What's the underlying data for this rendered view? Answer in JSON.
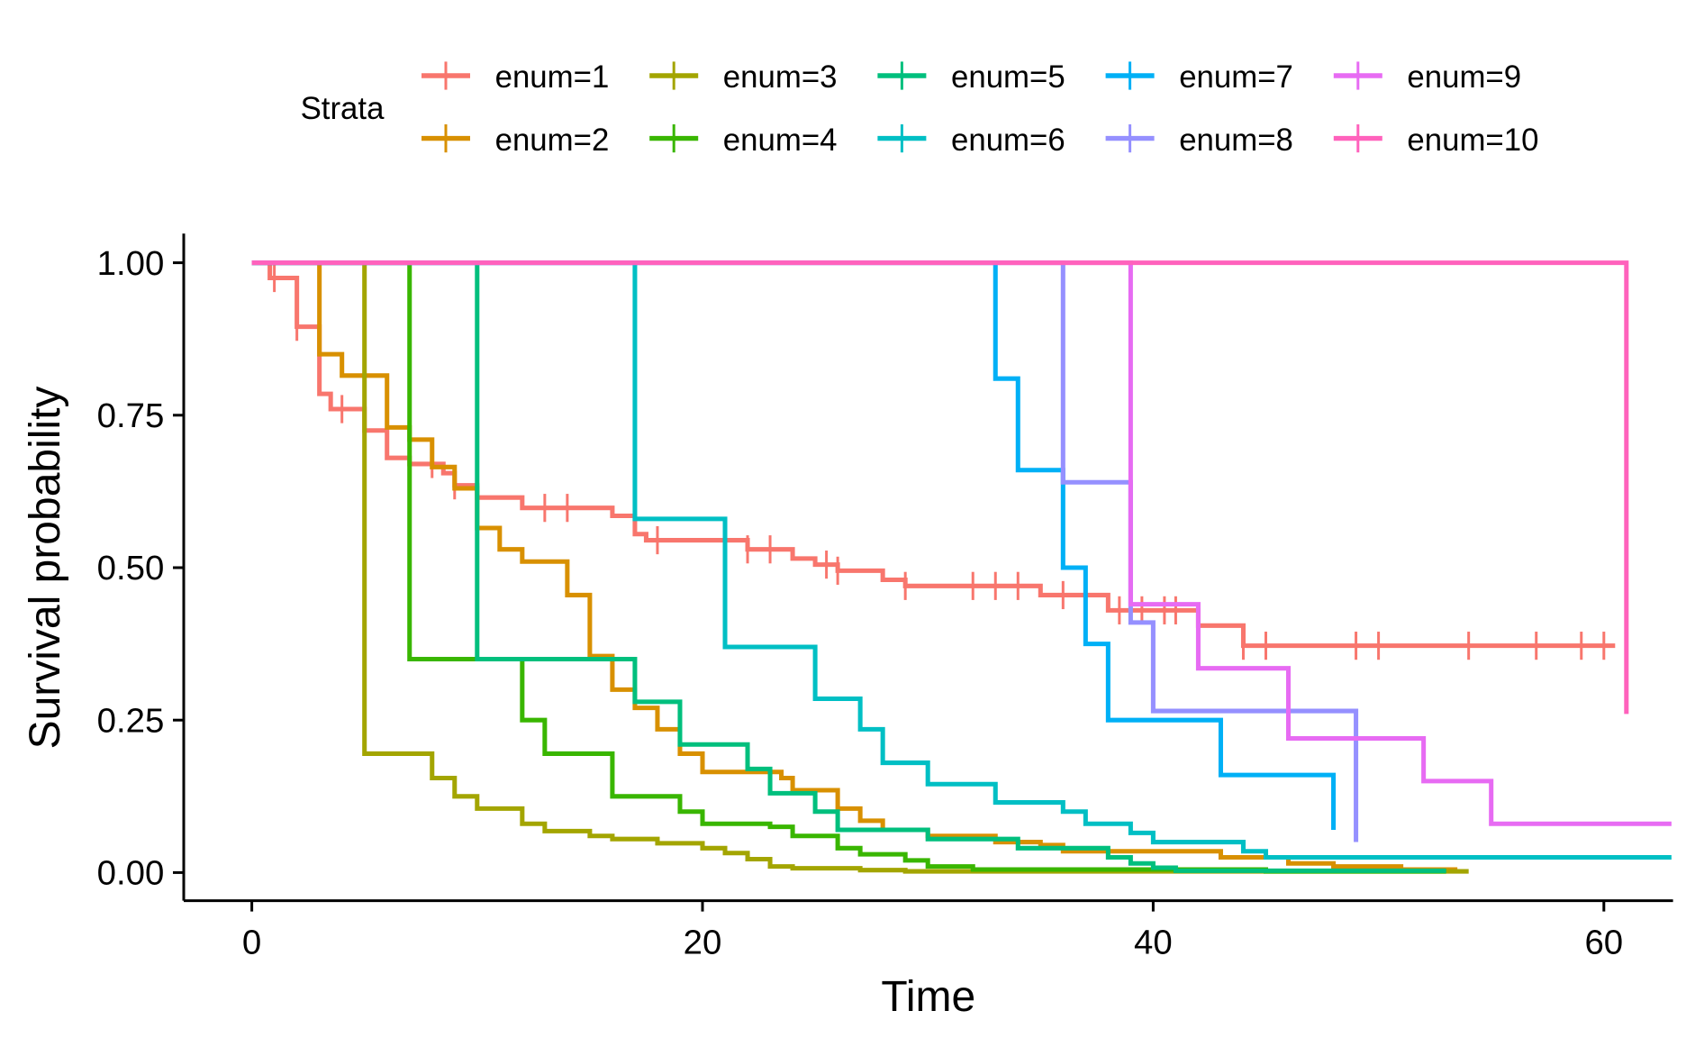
{
  "chart_data": {
    "type": "line",
    "subtype": "kaplan-meier step",
    "xlabel": "Time",
    "ylabel": "Survival probability",
    "xlim": [
      -1.5,
      63
    ],
    "ylim": [
      -0.045,
      1.05
    ],
    "xticks": [
      0,
      20,
      40,
      60
    ],
    "xtick_labels": [
      "0",
      "20",
      "40",
      "60"
    ],
    "yticks": [
      0,
      0.25,
      0.5,
      0.75,
      1
    ],
    "ytick_labels": [
      "0.00",
      "0.25",
      "0.50",
      "0.75",
      "1.00"
    ],
    "grid": false,
    "legend": {
      "title": "Strata",
      "placement": "top"
    },
    "series": [
      {
        "name": "enum=1",
        "color": "#F8766D",
        "steps": [
          [
            0,
            1
          ],
          [
            0.8,
            0.975
          ],
          [
            2,
            0.895
          ],
          [
            3,
            0.785
          ],
          [
            3.5,
            0.76
          ],
          [
            5,
            0.725
          ],
          [
            6,
            0.68
          ],
          [
            7,
            0.67
          ],
          [
            8.5,
            0.655
          ],
          [
            9,
            0.635
          ],
          [
            10,
            0.615
          ],
          [
            12,
            0.598
          ],
          [
            16,
            0.585
          ],
          [
            17,
            0.555
          ],
          [
            17.5,
            0.545
          ],
          [
            22,
            0.53
          ],
          [
            24,
            0.515
          ],
          [
            25,
            0.505
          ],
          [
            26,
            0.495
          ],
          [
            28,
            0.48
          ],
          [
            29,
            0.47
          ],
          [
            35,
            0.455
          ],
          [
            38,
            0.43
          ],
          [
            42,
            0.405
          ],
          [
            44,
            0.372
          ]
        ],
        "end": 60.5,
        "censor": [
          1,
          2,
          4,
          8,
          9,
          10,
          13,
          14,
          18,
          22,
          23,
          25.5,
          26,
          29,
          32,
          33,
          34,
          36,
          37,
          38.5,
          39.5,
          40.5,
          41,
          44,
          45,
          49,
          50,
          54,
          57,
          59,
          60
        ]
      },
      {
        "name": "enum=2",
        "color": "#D89000",
        "steps": [
          [
            0,
            1
          ],
          [
            3,
            0.85
          ],
          [
            4,
            0.815
          ],
          [
            6,
            0.73
          ],
          [
            7,
            0.71
          ],
          [
            8,
            0.665
          ],
          [
            9,
            0.63
          ],
          [
            10,
            0.565
          ],
          [
            11,
            0.53
          ],
          [
            12,
            0.51
          ],
          [
            14,
            0.455
          ],
          [
            15,
            0.355
          ],
          [
            16,
            0.3
          ],
          [
            17,
            0.27
          ],
          [
            18,
            0.235
          ],
          [
            19,
            0.195
          ],
          [
            20,
            0.165
          ],
          [
            23.5,
            0.155
          ],
          [
            24,
            0.135
          ],
          [
            26,
            0.105
          ],
          [
            27,
            0.085
          ],
          [
            28,
            0.07
          ],
          [
            30,
            0.06
          ],
          [
            33,
            0.05
          ],
          [
            35,
            0.045
          ],
          [
            36,
            0.035
          ],
          [
            43,
            0.025
          ],
          [
            46,
            0.015
          ],
          [
            48,
            0.01
          ],
          [
            51,
            0.005
          ]
        ],
        "end": 53.5,
        "censor": []
      },
      {
        "name": "enum=3",
        "color": "#A3A500",
        "steps": [
          [
            0,
            1
          ],
          [
            5,
            0.195
          ],
          [
            8,
            0.155
          ],
          [
            9,
            0.125
          ],
          [
            10,
            0.105
          ],
          [
            12,
            0.08
          ],
          [
            13,
            0.068
          ],
          [
            15,
            0.06
          ],
          [
            16,
            0.055
          ],
          [
            18,
            0.048
          ],
          [
            20,
            0.04
          ],
          [
            21,
            0.032
          ],
          [
            22,
            0.022
          ],
          [
            23,
            0.01
          ],
          [
            24,
            0.007
          ],
          [
            27,
            0.004
          ],
          [
            29,
            0.002
          ]
        ],
        "end": 54,
        "censor": []
      },
      {
        "name": "enum=4",
        "color": "#39B600",
        "steps": [
          [
            0,
            1
          ],
          [
            7,
            0.35
          ],
          [
            12,
            0.25
          ],
          [
            13,
            0.195
          ],
          [
            16,
            0.125
          ],
          [
            19,
            0.1
          ],
          [
            20,
            0.08
          ],
          [
            23,
            0.075
          ],
          [
            24,
            0.06
          ],
          [
            26,
            0.04
          ],
          [
            27,
            0.03
          ],
          [
            29,
            0.02
          ],
          [
            30,
            0.01
          ],
          [
            32,
            0.005
          ],
          [
            45,
            0.002
          ]
        ],
        "end": 53,
        "censor": []
      },
      {
        "name": "enum=5",
        "color": "#00BF7D",
        "steps": [
          [
            0,
            1
          ],
          [
            10,
            0.35
          ],
          [
            17,
            0.28
          ],
          [
            19,
            0.21
          ],
          [
            22,
            0.17
          ],
          [
            23,
            0.13
          ],
          [
            25,
            0.1
          ],
          [
            26,
            0.07
          ],
          [
            30,
            0.055
          ],
          [
            34,
            0.04
          ],
          [
            38,
            0.025
          ],
          [
            39,
            0.015
          ],
          [
            40,
            0.008
          ],
          [
            41,
            0.003
          ]
        ],
        "end": 53,
        "censor": []
      },
      {
        "name": "enum=6",
        "color": "#00BFC4",
        "steps": [
          [
            0,
            1
          ],
          [
            17,
            0.58
          ],
          [
            21,
            0.37
          ],
          [
            25,
            0.285
          ],
          [
            27,
            0.235
          ],
          [
            28,
            0.18
          ],
          [
            30,
            0.145
          ],
          [
            33,
            0.115
          ],
          [
            36,
            0.1
          ],
          [
            37,
            0.08
          ],
          [
            39,
            0.065
          ],
          [
            40,
            0.05
          ],
          [
            44,
            0.035
          ],
          [
            45,
            0.025
          ]
        ],
        "end": 63,
        "censor": []
      },
      {
        "name": "enum=7",
        "color": "#00B0F6",
        "steps": [
          [
            0,
            1
          ],
          [
            33,
            0.81
          ],
          [
            34,
            0.66
          ],
          [
            36,
            0.5
          ],
          [
            37,
            0.375
          ],
          [
            38,
            0.25
          ],
          [
            43,
            0.16
          ],
          [
            48,
            0.07
          ]
        ],
        "end": 48,
        "censor": []
      },
      {
        "name": "enum=8",
        "color": "#9590FF",
        "steps": [
          [
            0,
            1
          ],
          [
            36,
            0.64
          ],
          [
            39,
            0.41
          ],
          [
            40,
            0.265
          ],
          [
            49,
            0.05
          ]
        ],
        "end": 49,
        "censor": []
      },
      {
        "name": "enum=9",
        "color": "#E76BF3",
        "steps": [
          [
            0,
            1
          ],
          [
            39,
            0.44
          ],
          [
            42,
            0.335
          ],
          [
            46,
            0.22
          ],
          [
            52,
            0.15
          ],
          [
            55,
            0.08
          ]
        ],
        "end": 63,
        "censor": []
      },
      {
        "name": "enum=10",
        "color": "#FF62BC",
        "steps": [
          [
            0,
            1
          ],
          [
            61,
            0.26
          ]
        ],
        "end": 61,
        "censor": []
      }
    ]
  }
}
